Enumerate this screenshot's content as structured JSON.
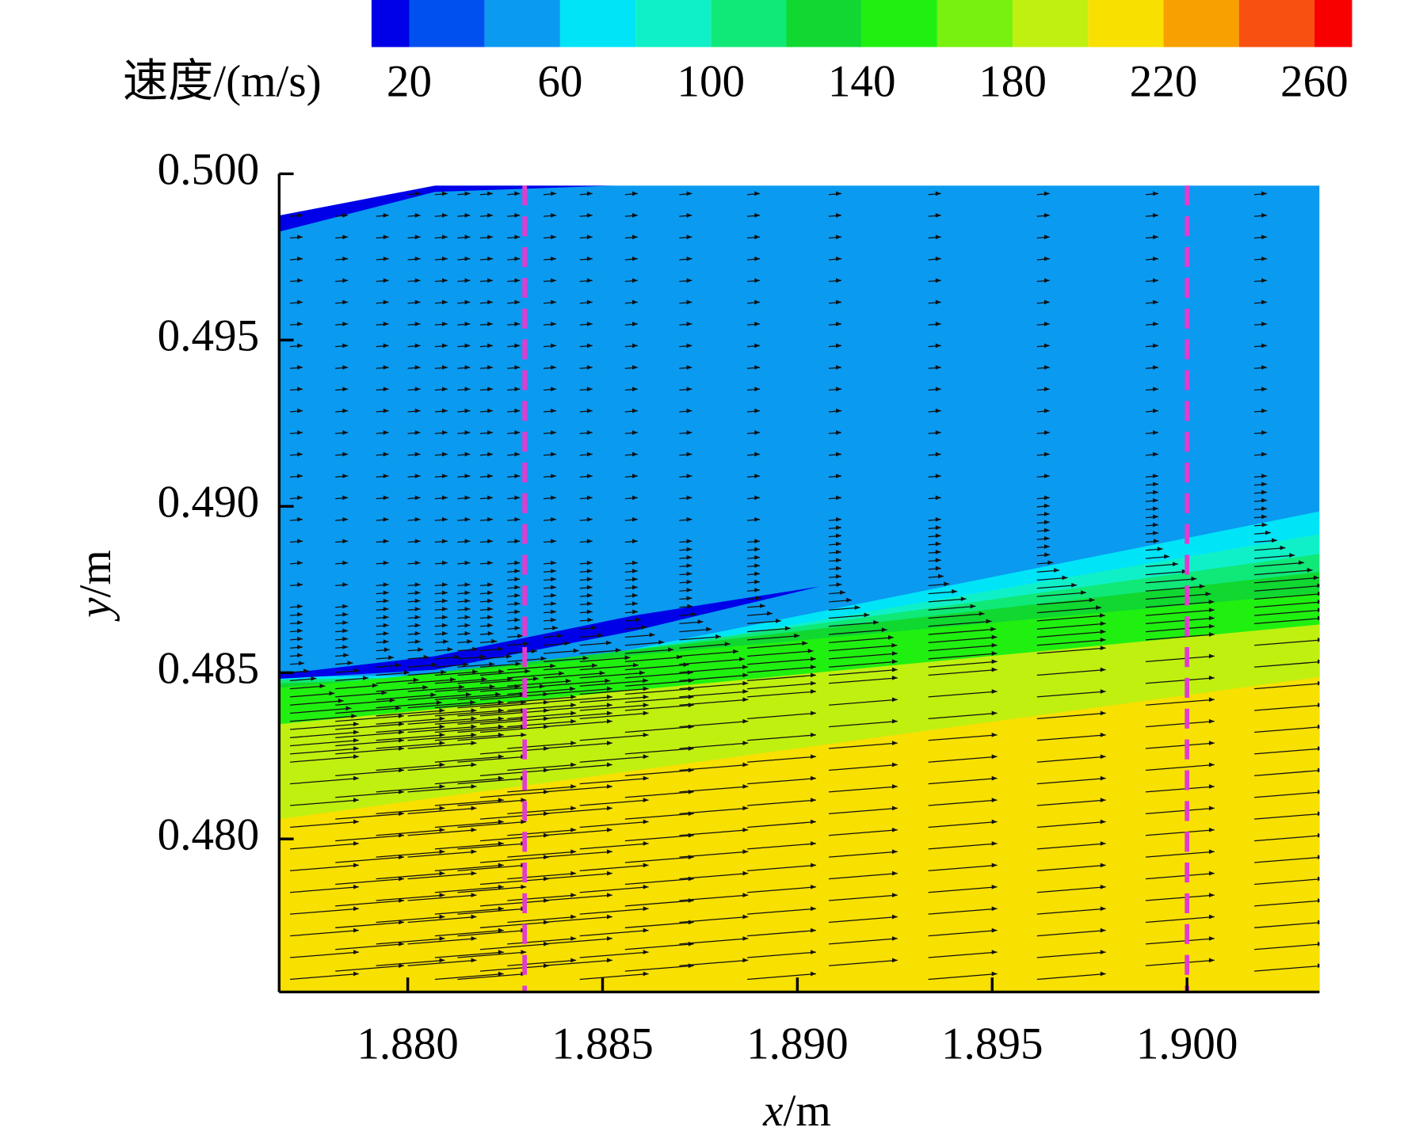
{
  "chart_data": {
    "type": "contour",
    "colorbar": {
      "label": "速度/(m/s)",
      "levels": [
        20,
        40,
        60,
        80,
        100,
        120,
        140,
        160,
        180,
        200,
        220,
        240,
        260
      ],
      "ticks": [
        20,
        60,
        100,
        140,
        180,
        220,
        260
      ],
      "colors": [
        "#0000e8",
        "#0050f0",
        "#0a9af0",
        "#00e4f8",
        "#10f0c8",
        "#10e878",
        "#10d830",
        "#20f010",
        "#78f010",
        "#c0f010",
        "#f8e000",
        "#f8a000",
        "#f85010",
        "#f80000"
      ]
    },
    "xlabel": {
      "symbol": "x",
      "unit": "/m"
    },
    "ylabel": {
      "symbol": "y",
      "unit": "/m"
    },
    "xlim": [
      1.8767,
      1.9034
    ],
    "ylim": [
      0.4754,
      0.5
    ],
    "xticks": [
      {
        "value": 1.88,
        "label": "1.880"
      },
      {
        "value": 1.885,
        "label": "1.885"
      },
      {
        "value": 1.89,
        "label": "1.890"
      },
      {
        "value": 1.895,
        "label": "1.895"
      },
      {
        "value": 1.9,
        "label": "1.900"
      }
    ],
    "yticks": [
      {
        "value": 0.48,
        "label": "0.480"
      },
      {
        "value": 0.485,
        "label": "0.485"
      },
      {
        "value": 0.49,
        "label": "0.490"
      },
      {
        "value": 0.495,
        "label": "0.495"
      },
      {
        "value": 0.5,
        "label": "0.500"
      }
    ],
    "reference_lines": {
      "x": [
        1.883,
        1.9
      ],
      "color": "#e03cd0"
    }
  }
}
